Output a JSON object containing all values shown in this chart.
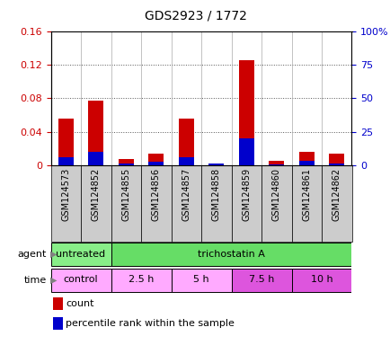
{
  "title": "GDS2923 / 1772",
  "samples": [
    "GSM124573",
    "GSM124852",
    "GSM124855",
    "GSM124856",
    "GSM124857",
    "GSM124858",
    "GSM124859",
    "GSM124860",
    "GSM124861",
    "GSM124862"
  ],
  "count_values": [
    0.056,
    0.077,
    0.008,
    0.014,
    0.056,
    0.002,
    0.125,
    0.006,
    0.016,
    0.014
  ],
  "percentile_values": [
    0.01,
    0.016,
    0.003,
    0.005,
    0.01,
    0.002,
    0.032,
    0.001,
    0.006,
    0.002
  ],
  "ylim_left": [
    0,
    0.16
  ],
  "ylim_right": [
    0,
    100
  ],
  "yticks_left": [
    0,
    0.04,
    0.08,
    0.12,
    0.16
  ],
  "yticks_right": [
    0,
    25,
    50,
    75,
    100
  ],
  "ytick_labels_left": [
    "0",
    "0.04",
    "0.08",
    "0.12",
    "0.16"
  ],
  "ytick_labels_right": [
    "0",
    "25",
    "50",
    "75",
    "100%"
  ],
  "bar_color_count": "#cc0000",
  "bar_color_percentile": "#0000cc",
  "agent_labels": [
    {
      "text": "untreated",
      "start": 0,
      "end": 2,
      "color": "#88ee88"
    },
    {
      "text": "trichostatin A",
      "start": 2,
      "end": 10,
      "color": "#66dd66"
    }
  ],
  "time_labels": [
    {
      "text": "control",
      "start": 0,
      "end": 2,
      "color": "#ffaaff"
    },
    {
      "text": "2.5 h",
      "start": 2,
      "end": 4,
      "color": "#ffaaff"
    },
    {
      "text": "5 h",
      "start": 4,
      "end": 6,
      "color": "#ffaaff"
    },
    {
      "text": "7.5 h",
      "start": 6,
      "end": 8,
      "color": "#dd55dd"
    },
    {
      "text": "10 h",
      "start": 8,
      "end": 10,
      "color": "#dd55dd"
    }
  ],
  "bar_width": 0.5,
  "background_color": "#ffffff",
  "grid_color": "#555555",
  "tick_label_color_left": "#cc0000",
  "tick_label_color_right": "#0000cc",
  "legend_count_label": "count",
  "legend_percentile_label": "percentile rank within the sample",
  "agent_row_label": "agent",
  "time_row_label": "time",
  "xtick_bg_color": "#cccccc"
}
